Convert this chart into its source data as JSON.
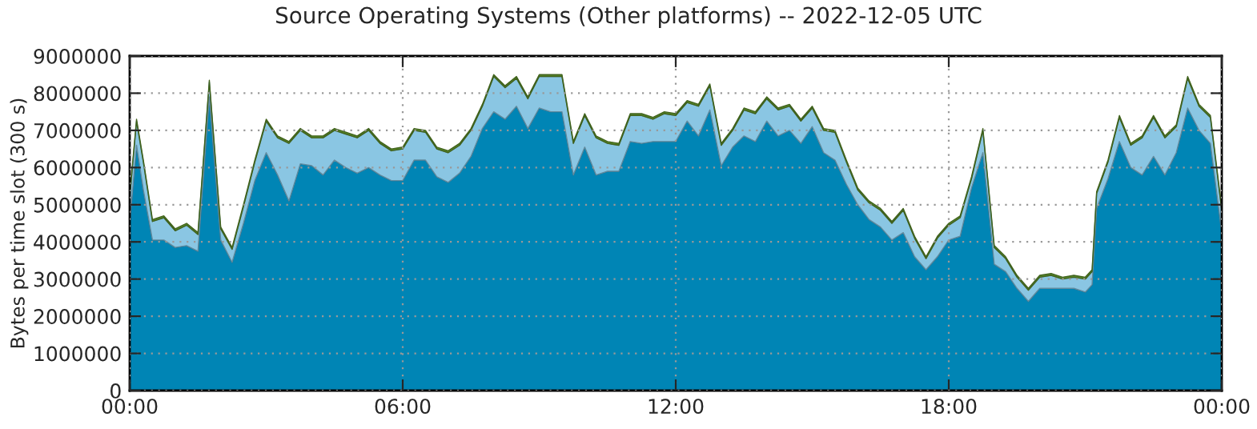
{
  "chart_data": {
    "type": "area",
    "stacked": true,
    "title": "Source Operating Systems (Other platforms) -- 2022-12-05 UTC",
    "ylabel": "Bytes per time slot (300 s)",
    "x": [
      0,
      0.15,
      0.3,
      0.5,
      0.75,
      1,
      1.25,
      1.5,
      1.75,
      2,
      2.25,
      2.5,
      2.75,
      3,
      3.25,
      3.5,
      3.75,
      4,
      4.25,
      4.5,
      4.75,
      5,
      5.25,
      5.5,
      5.75,
      6,
      6.25,
      6.5,
      6.75,
      7,
      7.25,
      7.5,
      7.75,
      8,
      8.25,
      8.5,
      8.75,
      9,
      9.25,
      9.5,
      9.75,
      10,
      10.25,
      10.5,
      10.75,
      11,
      11.25,
      11.5,
      11.75,
      12,
      12.25,
      12.5,
      12.75,
      13,
      13.25,
      13.5,
      13.75,
      14,
      14.25,
      14.5,
      14.75,
      15,
      15.25,
      15.5,
      15.75,
      16,
      16.25,
      16.5,
      16.75,
      17,
      17.25,
      17.5,
      17.75,
      18,
      18.25,
      18.5,
      18.75,
      19,
      19.25,
      19.5,
      19.75,
      20,
      20.25,
      20.5,
      20.75,
      21,
      21.15,
      21.25,
      21.5,
      21.75,
      22,
      22.25,
      22.5,
      22.75,
      23,
      23.25,
      23.5,
      23.75,
      24
    ],
    "series": [
      {
        "color": "#0085b5",
        "values": [
          4500000.0,
          6600000.0,
          5400000.0,
          4050000.0,
          4050000.0,
          3850000.0,
          3900000.0,
          3750000.0,
          7900000.0,
          4050000.0,
          3450000.0,
          4500000.0,
          5650000.0,
          6400000.0,
          5800000.0,
          5100000.0,
          6100000.0,
          6050000.0,
          5800000.0,
          6200000.0,
          6000000.0,
          5850000.0,
          6000000.0,
          5800000.0,
          5650000.0,
          5650000.0,
          6200000.0,
          6200000.0,
          5750000.0,
          5600000.0,
          5850000.0,
          6300000.0,
          7050000.0,
          7500000.0,
          7300000.0,
          7650000.0,
          7050000.0,
          7600000.0,
          7500000.0,
          7500000.0,
          5800000.0,
          6550000.0,
          5800000.0,
          5900000.0,
          5900000.0,
          6700000.0,
          6650000.0,
          6700000.0,
          6700000.0,
          6700000.0,
          7250000.0,
          6850000.0,
          7550000.0,
          6050000.0,
          6550000.0,
          6850000.0,
          6700000.0,
          7250000.0,
          6850000.0,
          7000000.0,
          6650000.0,
          7100000.0,
          6400000.0,
          6200000.0,
          5550000.0,
          5000000.0,
          4600000.0,
          4400000.0,
          4050000.0,
          4250000.0,
          3600000.0,
          3250000.0,
          3600000.0,
          4050000.0,
          4150000.0,
          5450000.0,
          6400000.0,
          3400000.0,
          3200000.0,
          2750000.0,
          2400000.0,
          2750000.0,
          2750000.0,
          2750000.0,
          2750000.0,
          2650000.0,
          2850000.0,
          4900000.0,
          5700000.0,
          6700000.0,
          6000000.0,
          5800000.0,
          6300000.0,
          5800000.0,
          6400000.0,
          7600000.0,
          7000000.0,
          6650000.0,
          4250000.0
        ]
      },
      {
        "color": "#8ac6e3",
        "values": [
          700000.0,
          650000.0,
          750000.0,
          500000.0,
          600000.0,
          450000.0,
          550000.0,
          450000.0,
          400000.0,
          300000.0,
          350000.0,
          450000.0,
          500000.0,
          850000.0,
          1000000.0,
          1550000.0,
          900000.0,
          750000.0,
          1000000.0,
          800000.0,
          900000.0,
          950000.0,
          1000000.0,
          850000.0,
          800000.0,
          850000.0,
          800000.0,
          750000.0,
          750000.0,
          800000.0,
          750000.0,
          700000.0,
          600000.0,
          950000.0,
          850000.0,
          750000.0,
          800000.0,
          850000.0,
          950000.0,
          950000.0,
          850000.0,
          850000.0,
          1000000.0,
          750000.0,
          700000.0,
          700000.0,
          750000.0,
          600000.0,
          750000.0,
          700000.0,
          500000.0,
          800000.0,
          650000.0,
          550000.0,
          450000.0,
          700000.0,
          750000.0,
          600000.0,
          700000.0,
          650000.0,
          600000.0,
          500000.0,
          600000.0,
          750000.0,
          600000.0,
          400000.0,
          450000.0,
          450000.0,
          450000.0,
          600000.0,
          500000.0,
          300000.0,
          500000.0,
          400000.0,
          500000.0,
          250000.0,
          600000.0,
          450000.0,
          350000.0,
          300000.0,
          300000.0,
          300000.0,
          350000.0,
          250000.0,
          300000.0,
          350000.0,
          350000.0,
          400000.0,
          450000.0,
          650000.0,
          600000.0,
          1000000.0,
          1050000.0,
          1000000.0,
          700000.0,
          800000.0,
          650000.0,
          700000.0,
          600000.0
        ]
      },
      {
        "color": "#5b8c2a",
        "values": [
          50000.0,
          50000.0,
          50000.0,
          50000.0,
          50000.0,
          50000.0,
          50000.0,
          50000.0,
          50000.0,
          50000.0,
          50000.0,
          50000.0,
          50000.0,
          50000.0,
          50000.0,
          50000.0,
          50000.0,
          50000.0,
          50000.0,
          50000.0,
          50000.0,
          50000.0,
          50000.0,
          50000.0,
          50000.0,
          50000.0,
          50000.0,
          50000.0,
          50000.0,
          50000.0,
          50000.0,
          50000.0,
          50000.0,
          50000.0,
          50000.0,
          50000.0,
          50000.0,
          50000.0,
          50000.0,
          50000.0,
          50000.0,
          50000.0,
          50000.0,
          50000.0,
          50000.0,
          50000.0,
          50000.0,
          50000.0,
          50000.0,
          50000.0,
          50000.0,
          50000.0,
          50000.0,
          50000.0,
          50000.0,
          50000.0,
          50000.0,
          50000.0,
          50000.0,
          50000.0,
          50000.0,
          50000.0,
          50000.0,
          50000.0,
          50000.0,
          50000.0,
          50000.0,
          50000.0,
          50000.0,
          50000.0,
          50000.0,
          50000.0,
          50000.0,
          50000.0,
          50000.0,
          50000.0,
          50000.0,
          50000.0,
          50000.0,
          50000.0,
          50000.0,
          50000.0,
          50000.0,
          50000.0,
          50000.0,
          50000.0,
          50000.0,
          50000.0,
          50000.0,
          50000.0,
          50000.0,
          50000.0,
          50000.0,
          50000.0,
          50000.0,
          50000.0,
          50000.0,
          50000.0,
          50000.0
        ]
      }
    ],
    "xlim": [
      0,
      24
    ],
    "xticks": [
      {
        "value": 0,
        "label": "00:00"
      },
      {
        "value": 6,
        "label": "06:00"
      },
      {
        "value": 12,
        "label": "12:00"
      },
      {
        "value": 18,
        "label": "18:00"
      },
      {
        "value": 24,
        "label": "00:00"
      }
    ],
    "ylim": [
      0,
      9000000
    ],
    "yticks": [
      0,
      1000000,
      2000000,
      3000000,
      4000000,
      5000000,
      6000000,
      7000000,
      8000000,
      9000000
    ],
    "grid": true
  }
}
